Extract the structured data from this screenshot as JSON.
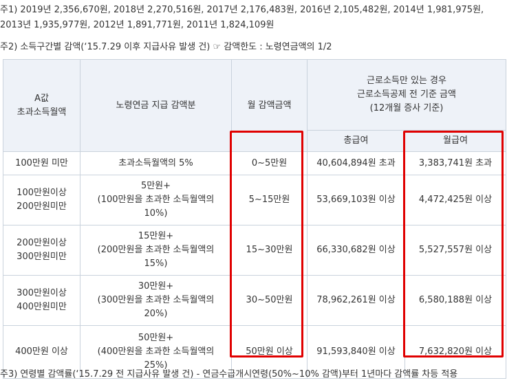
{
  "notes": {
    "note1_line1": "주1) 2019년 2,356,670원, 2018년 2,270,516원, 2017년 2,176,483원, 2016년 2,105,482원, 2014년 1,981,975원,",
    "note1_line2": "2013년 1,935,977원, 2012년 1,891,771원, 2011년 1,824,109원",
    "note2": "주2) 소득구간별 감액(‘15.7.29 이후 지급사유 발생 건) ☞ 감액한도 : 노령연금액의 1/2",
    "note3": "주3) 연령별 감액률(‘15.7.29 전 지급사유 발생 건) - 연금수급개시연령(50%~10% 감액)부터 1년마다 감액률 차등 적용"
  },
  "table": {
    "headers": {
      "col_a": "A값\n초과소득월액",
      "col_reduction": "노령연금 지급 감액분",
      "col_monthly": "월 감액금액",
      "col_group": "근로소득만 있는 경우\n근로소득공제 전 기준 금액\n(12개월 증사 기준)",
      "col_gross": "총급여",
      "col_wage": "월급여"
    },
    "rows": [
      {
        "income": "100만원 미만",
        "reduction": "초과소득월액의 5%",
        "monthly": "0~5만원",
        "gross": "40,604,894원 초과",
        "wage": "3,383,741원 초과"
      },
      {
        "income": "100만원이상\n200만원미만",
        "reduction": "5만원+\n(100만원을 초과한 소득월액의\n10%)",
        "monthly": "5~15만원",
        "gross": "53,669,103원 이상",
        "wage": "4,472,425원 이상"
      },
      {
        "income": "200만원이상\n300만원미만",
        "reduction": "15만원+\n(200만원을 초과한 소득월액의\n15%)",
        "monthly": "15~30만원",
        "gross": "66,330,682원 이상",
        "wage": "5,527,557원 이상"
      },
      {
        "income": "300만원이상\n400만원미만",
        "reduction": "30만원+\n(300만원을 초과한 소득월액의\n20%)",
        "monthly": "30~50만원",
        "gross": "78,962,261원 이상",
        "wage": "6,580,188원 이상"
      },
      {
        "income": "400만원 이상",
        "reduction": "50만원+\n(400만원을 초과한 소득월액의\n25%)",
        "monthly": "50만원 이상",
        "gross": "91,593,840원 이상",
        "wage": "7,632,820원 이상"
      }
    ]
  },
  "highlight_color": "#e00000"
}
